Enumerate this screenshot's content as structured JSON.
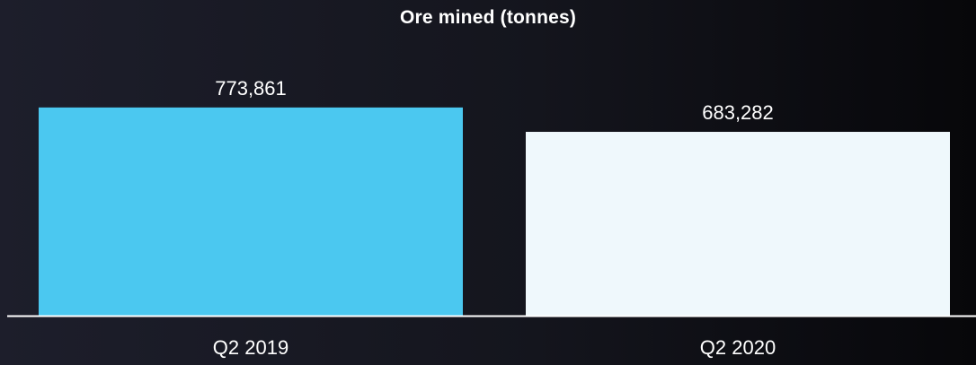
{
  "colors": {
    "background": "#16171f",
    "axis": "#ffffff",
    "text": "#ffffff"
  },
  "chart_data": {
    "type": "bar",
    "title": "Ore mined (tonnes)",
    "xlabel": "",
    "ylabel": "",
    "categories": [
      "Q2 2019",
      "Q2 2020"
    ],
    "values": [
      773861,
      683282
    ],
    "value_labels": [
      "773,861",
      "683,282"
    ],
    "bar_colors": [
      "#4bc8f0",
      "#eff8fc"
    ],
    "ylim": [
      0,
      800000
    ],
    "grid": false,
    "legend": "none"
  }
}
